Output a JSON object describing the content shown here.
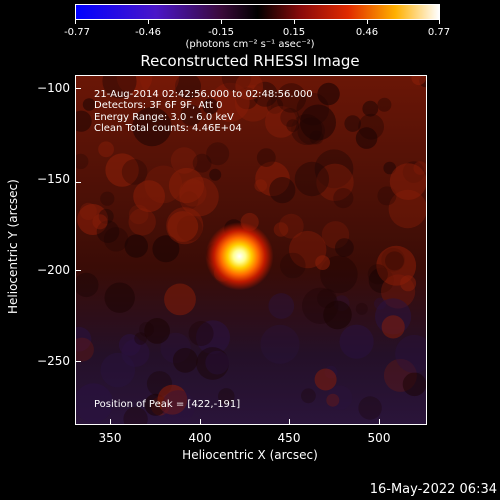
{
  "colorbar": {
    "ticks": [
      "-0.77",
      "-0.46",
      "-0.15",
      "0.15",
      "0.46",
      "0.77"
    ],
    "units": "(photons cm⁻² s⁻¹ asec⁻²)"
  },
  "title": "Reconstructed RHESSI Image",
  "info": {
    "time": "21-Aug-2014 02:42:56.000 to 02:48:56.000",
    "detectors": "Detectors: 3F 6F 9F, Att 0",
    "energy": "Energy Range: 3.0 - 6.0 keV",
    "clean": "Clean     Total counts: 4.46E+04",
    "peak": "Position of Peak = [422,-191]"
  },
  "axes": {
    "xlabel": "Heliocentric X (arcsec)",
    "ylabel": "Heliocentric Y (arcsec)",
    "xticks": [
      "350",
      "400",
      "450",
      "500"
    ],
    "yticks": [
      "−100",
      "−150",
      "−200",
      "−250"
    ]
  },
  "timestamp": "16-May-2022 06:34",
  "chart_data": {
    "type": "heatmap",
    "title": "Reconstructed RHESSI Image",
    "xlabel": "Heliocentric X (arcsec)",
    "ylabel": "Heliocentric Y (arcsec)",
    "xlim": [
      330,
      527
    ],
    "ylim": [
      -285,
      -90
    ],
    "clim": [
      -0.77,
      0.77
    ],
    "peak": {
      "x": 422,
      "y": -191
    }
  }
}
